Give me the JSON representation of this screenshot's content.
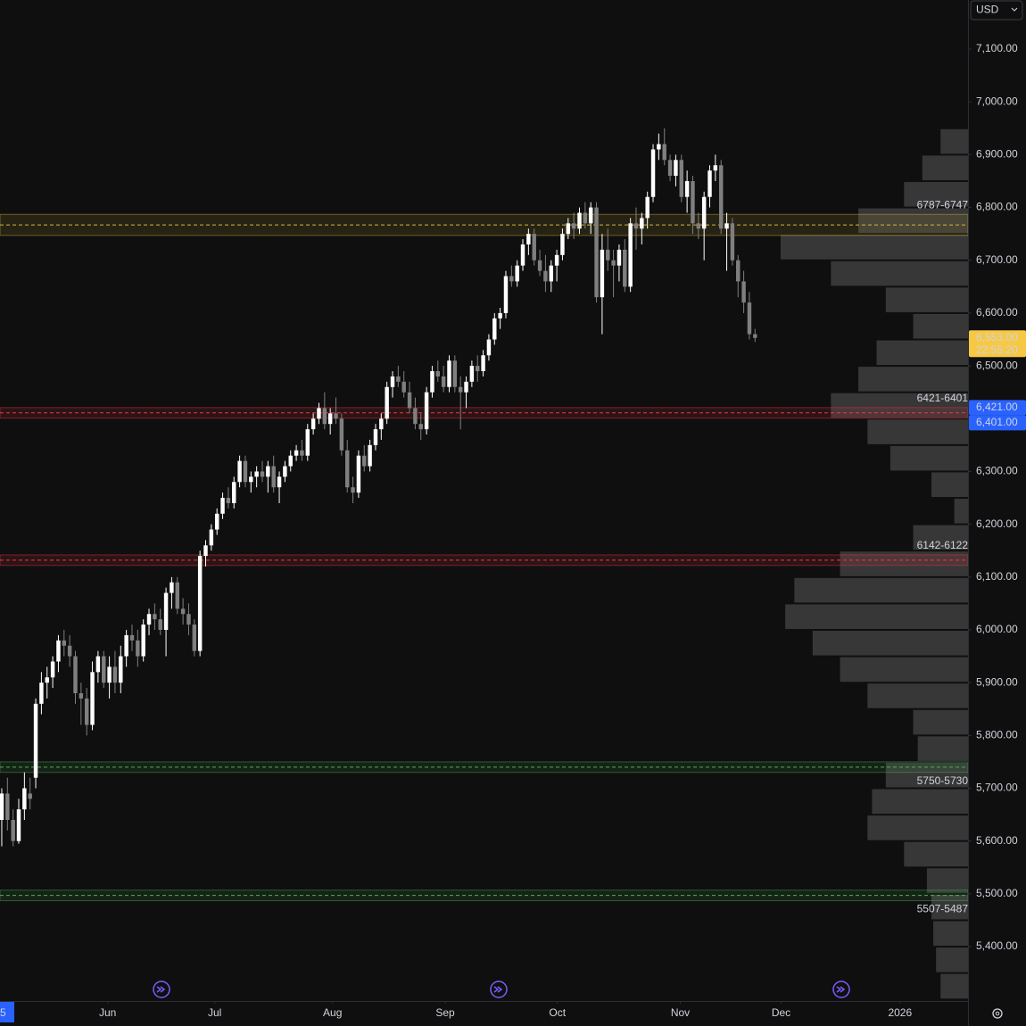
{
  "chart_data": {
    "type": "candlestick",
    "currency": "USD",
    "colors": {
      "up": "#ffffff",
      "down": "#7f7f7f"
    },
    "ylim": [
      5297,
      7193
    ],
    "yticks": [
      {
        "value": 5400,
        "label": "5,400.00"
      },
      {
        "value": 5500,
        "label": "5,500.00"
      },
      {
        "value": 5600,
        "label": "5,600.00"
      },
      {
        "value": 5700,
        "label": "5,700.00"
      },
      {
        "value": 5800,
        "label": "5,800.00"
      },
      {
        "value": 5900,
        "label": "5,900.00"
      },
      {
        "value": 6000,
        "label": "6,000.00"
      },
      {
        "value": 6100,
        "label": "6,100.00"
      },
      {
        "value": 6200,
        "label": "6,200.00"
      },
      {
        "value": 6300,
        "label": "6,300.00"
      },
      {
        "value": 6500,
        "label": "6,500.00"
      },
      {
        "value": 6600,
        "label": "6,600.00"
      },
      {
        "value": 6700,
        "label": "6,700.00"
      },
      {
        "value": 6800,
        "label": "6,800.00"
      },
      {
        "value": 6900,
        "label": "6,900.00"
      },
      {
        "value": 7000,
        "label": "7,000.00"
      },
      {
        "value": 7100,
        "label": "7,100.00"
      }
    ],
    "xlim": [
      -0.31,
      170.6
    ],
    "xticks": [
      {
        "value": 0.16,
        "label": "5"
      },
      {
        "value": 18.7,
        "label": "Jun"
      },
      {
        "value": 37.6,
        "label": "Jul"
      },
      {
        "value": 58.4,
        "label": "Aug"
      },
      {
        "value": 78.3,
        "label": "Sep"
      },
      {
        "value": 98.1,
        "label": "Oct"
      },
      {
        "value": 119.8,
        "label": "Nov"
      },
      {
        "value": 137.6,
        "label": "Dec"
      },
      {
        "value": 158.6,
        "label": "2026"
      }
    ],
    "zones": [
      {
        "label": "6787-6747",
        "high": 6787,
        "low": 6747,
        "color": "#d4b43c",
        "label_position": "above"
      },
      {
        "label": "6421-6401",
        "high": 6421,
        "low": 6401,
        "color": "#f23645",
        "label_position": "above"
      },
      {
        "label": "6142-6122",
        "high": 6142,
        "low": 6122,
        "color": "#f23645",
        "label_position": "above"
      },
      {
        "label": "5750-5730",
        "high": 5750,
        "low": 5730,
        "color": "#4caf50",
        "label_position": "below"
      },
      {
        "label": "5507-5487",
        "high": 5507,
        "low": 5487,
        "color": "#4caf50",
        "label_position": "below"
      }
    ],
    "price_labels": [
      {
        "value": 6553,
        "label": "6,553.00",
        "countdown": "22:55:20",
        "color": "#f7c843",
        "text_color": "#131722"
      },
      {
        "value": 6421,
        "label": "6,421.00",
        "color": "#2962ff",
        "text_color": "#ffffff"
      },
      {
        "value": 6401,
        "label": "6,401.00",
        "color": "#2962ff",
        "text_color": "#ffffff"
      }
    ],
    "volume_profile": {
      "bins": [
        5300,
        5350,
        5400,
        5450,
        5500,
        5550,
        5600,
        5650,
        5700,
        5750,
        5800,
        5850,
        5900,
        5950,
        6000,
        6050,
        6100,
        6150,
        6200,
        6250,
        6300,
        6350,
        6400,
        6450,
        6500,
        6550,
        6600,
        6650,
        6700,
        6750,
        6800,
        6850,
        6900,
        6950
      ],
      "values": [
        30,
        35,
        38,
        40,
        45,
        70,
        110,
        105,
        90,
        55,
        60,
        110,
        140,
        170,
        200,
        190,
        140,
        60,
        15,
        40,
        85,
        110,
        150,
        120,
        100,
        60,
        90,
        150,
        205,
        120,
        70,
        50,
        30
      ],
      "color": "#5a5a5a"
    },
    "candles": [
      [
        5640,
        5700,
        5590,
        5690
      ],
      [
        5690,
        5720,
        5620,
        5640
      ],
      [
        5640,
        5660,
        5590,
        5600
      ],
      [
        5600,
        5680,
        5595,
        5660
      ],
      [
        5660,
        5730,
        5640,
        5700
      ],
      [
        5690,
        5720,
        5660,
        5680
      ],
      [
        5720,
        5870,
        5700,
        5860
      ],
      [
        5860,
        5920,
        5840,
        5900
      ],
      [
        5900,
        5930,
        5870,
        5910
      ],
      [
        5910,
        5950,
        5890,
        5940
      ],
      [
        5940,
        5990,
        5920,
        5980
      ],
      [
        5980,
        6000,
        5950,
        5970
      ],
      [
        5970,
        5990,
        5930,
        5950
      ],
      [
        5950,
        5960,
        5860,
        5880
      ],
      [
        5880,
        5900,
        5820,
        5870
      ],
      [
        5870,
        5890,
        5800,
        5820
      ],
      [
        5820,
        5940,
        5810,
        5920
      ],
      [
        5920,
        5960,
        5900,
        5950
      ],
      [
        5950,
        5960,
        5890,
        5900
      ],
      [
        5900,
        5950,
        5870,
        5930
      ],
      [
        5930,
        5960,
        5880,
        5900
      ],
      [
        5900,
        5970,
        5880,
        5950
      ],
      [
        5950,
        6000,
        5930,
        5990
      ],
      [
        5990,
        6010,
        5960,
        5980
      ],
      [
        5980,
        6000,
        5930,
        5950
      ],
      [
        5950,
        6020,
        5940,
        6010
      ],
      [
        6010,
        6040,
        5990,
        6030
      ],
      [
        6030,
        6050,
        6000,
        6020
      ],
      [
        6020,
        6040,
        5990,
        6000
      ],
      [
        6000,
        6080,
        5950,
        6070
      ],
      [
        6070,
        6100,
        6040,
        6090
      ],
      [
        6090,
        6100,
        6030,
        6040
      ],
      [
        6040,
        6060,
        6010,
        6030
      ],
      [
        6030,
        6050,
        5990,
        6010
      ],
      [
        6010,
        6020,
        5950,
        5960
      ],
      [
        5960,
        6150,
        5950,
        6140
      ],
      [
        6140,
        6170,
        6120,
        6160
      ],
      [
        6160,
        6200,
        6150,
        6190
      ],
      [
        6190,
        6230,
        6180,
        6220
      ],
      [
        6220,
        6260,
        6210,
        6250
      ],
      [
        6250,
        6270,
        6230,
        6240
      ],
      [
        6240,
        6290,
        6230,
        6280
      ],
      [
        6280,
        6330,
        6270,
        6320
      ],
      [
        6320,
        6330,
        6270,
        6280
      ],
      [
        6280,
        6300,
        6260,
        6290
      ],
      [
        6290,
        6310,
        6270,
        6300
      ],
      [
        6300,
        6320,
        6280,
        6290
      ],
      [
        6290,
        6320,
        6260,
        6310
      ],
      [
        6310,
        6330,
        6260,
        6270
      ],
      [
        6270,
        6300,
        6240,
        6290
      ],
      [
        6290,
        6320,
        6280,
        6310
      ],
      [
        6310,
        6340,
        6300,
        6330
      ],
      [
        6330,
        6350,
        6320,
        6340
      ],
      [
        6340,
        6360,
        6320,
        6330
      ],
      [
        6330,
        6390,
        6320,
        6380
      ],
      [
        6380,
        6410,
        6370,
        6400
      ],
      [
        6400,
        6430,
        6390,
        6420
      ],
      [
        6420,
        6450,
        6380,
        6390
      ],
      [
        6390,
        6420,
        6370,
        6410
      ],
      [
        6410,
        6440,
        6390,
        6400
      ],
      [
        6400,
        6410,
        6330,
        6340
      ],
      [
        6340,
        6360,
        6260,
        6270
      ],
      [
        6270,
        6290,
        6240,
        6260
      ],
      [
        6260,
        6340,
        6250,
        6330
      ],
      [
        6330,
        6350,
        6300,
        6310
      ],
      [
        6310,
        6360,
        6300,
        6350
      ],
      [
        6350,
        6390,
        6340,
        6380
      ],
      [
        6380,
        6410,
        6360,
        6400
      ],
      [
        6400,
        6470,
        6390,
        6460
      ],
      [
        6460,
        6490,
        6440,
        6480
      ],
      [
        6480,
        6500,
        6460,
        6470
      ],
      [
        6470,
        6490,
        6440,
        6450
      ],
      [
        6450,
        6470,
        6410,
        6420
      ],
      [
        6420,
        6440,
        6380,
        6390
      ],
      [
        6390,
        6410,
        6360,
        6380
      ],
      [
        6380,
        6460,
        6370,
        6450
      ],
      [
        6450,
        6500,
        6440,
        6490
      ],
      [
        6490,
        6510,
        6470,
        6480
      ],
      [
        6480,
        6500,
        6450,
        6460
      ],
      [
        6460,
        6520,
        6450,
        6510
      ],
      [
        6510,
        6520,
        6450,
        6460
      ],
      [
        6460,
        6480,
        6380,
        6450
      ],
      [
        6450,
        6480,
        6420,
        6470
      ],
      [
        6470,
        6510,
        6460,
        6500
      ],
      [
        6500,
        6520,
        6470,
        6490
      ],
      [
        6490,
        6530,
        6480,
        6520
      ],
      [
        6520,
        6560,
        6510,
        6550
      ],
      [
        6550,
        6600,
        6540,
        6590
      ],
      [
        6590,
        6610,
        6570,
        6600
      ],
      [
        6600,
        6680,
        6590,
        6670
      ],
      [
        6670,
        6690,
        6650,
        6660
      ],
      [
        6660,
        6700,
        6650,
        6690
      ],
      [
        6690,
        6740,
        6680,
        6730
      ],
      [
        6730,
        6760,
        6710,
        6750
      ],
      [
        6750,
        6760,
        6690,
        6700
      ],
      [
        6700,
        6720,
        6670,
        6680
      ],
      [
        6680,
        6710,
        6640,
        6660
      ],
      [
        6660,
        6700,
        6640,
        6690
      ],
      [
        6690,
        6720,
        6660,
        6710
      ],
      [
        6710,
        6760,
        6700,
        6750
      ],
      [
        6750,
        6780,
        6740,
        6770
      ],
      [
        6770,
        6790,
        6740,
        6760
      ],
      [
        6760,
        6800,
        6750,
        6790
      ],
      [
        6790,
        6810,
        6760,
        6770
      ],
      [
        6770,
        6810,
        6750,
        6800
      ],
      [
        6800,
        6810,
        6620,
        6630
      ],
      [
        6630,
        6750,
        6560,
        6720
      ],
      [
        6720,
        6760,
        6680,
        6700
      ],
      [
        6700,
        6720,
        6630,
        6690
      ],
      [
        6690,
        6730,
        6660,
        6720
      ],
      [
        6720,
        6740,
        6640,
        6650
      ],
      [
        6650,
        6780,
        6640,
        6770
      ],
      [
        6770,
        6800,
        6720,
        6760
      ],
      [
        6760,
        6790,
        6730,
        6780
      ],
      [
        6780,
        6830,
        6760,
        6820
      ],
      [
        6820,
        6920,
        6810,
        6910
      ],
      [
        6910,
        6940,
        6890,
        6920
      ],
      [
        6920,
        6950,
        6880,
        6890
      ],
      [
        6890,
        6900,
        6850,
        6860
      ],
      [
        6860,
        6900,
        6840,
        6890
      ],
      [
        6890,
        6900,
        6810,
        6820
      ],
      [
        6820,
        6870,
        6790,
        6850
      ],
      [
        6850,
        6860,
        6750,
        6770
      ],
      [
        6770,
        6790,
        6740,
        6760
      ],
      [
        6760,
        6830,
        6700,
        6820
      ],
      [
        6820,
        6880,
        6800,
        6870
      ],
      [
        6870,
        6900,
        6850,
        6880
      ],
      [
        6880,
        6890,
        6750,
        6760
      ],
      [
        6760,
        6790,
        6680,
        6770
      ],
      [
        6770,
        6780,
        6690,
        6700
      ],
      [
        6700,
        6710,
        6630,
        6660
      ],
      [
        6660,
        6680,
        6600,
        6620
      ],
      [
        6620,
        6640,
        6550,
        6560
      ],
      [
        6560,
        6570,
        6545,
        6553
      ]
    ]
  }
}
